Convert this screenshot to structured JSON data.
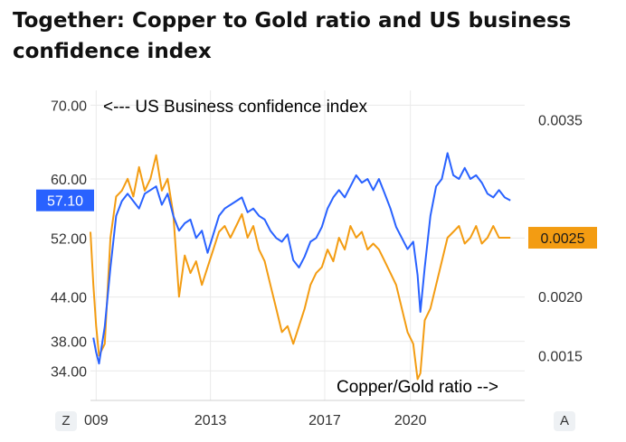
{
  "title": "Together: Copper to Gold ratio and US business confidence index",
  "buttons": {
    "left": "Z",
    "right": "A"
  },
  "colors": {
    "left_series": "#2962ff",
    "right_series": "#f39c12",
    "grid": "#eaeaea"
  },
  "chart_data": {
    "type": "line",
    "title": "Together: Copper to Gold ratio and US business confidence index",
    "x_ticks": [
      "009",
      "2013",
      "2017",
      "2020"
    ],
    "x_range": [
      2008.8,
      2024.0
    ],
    "left_axis": {
      "ticks": [
        "70.00",
        "60.00",
        "52.00",
        "44.00",
        "38.00",
        "34.00"
      ],
      "range": [
        30.0,
        72.0
      ]
    },
    "right_axis": {
      "ticks": [
        "0.0035",
        "0.0025",
        "0.0020",
        "0.0015"
      ],
      "range": [
        0.00112,
        0.00375
      ]
    },
    "series": [
      {
        "name": "US Business confidence index",
        "axis": "left",
        "annotation": "<--- US Business confidence index",
        "last_label": "57.10",
        "x": [
          2008.9,
          2009.0,
          2009.1,
          2009.3,
          2009.5,
          2009.7,
          2009.9,
          2010.1,
          2010.3,
          2010.5,
          2010.7,
          2010.9,
          2011.1,
          2011.3,
          2011.5,
          2011.7,
          2011.9,
          2012.1,
          2012.3,
          2012.5,
          2012.7,
          2012.9,
          2013.1,
          2013.3,
          2013.5,
          2013.7,
          2013.9,
          2014.1,
          2014.3,
          2014.5,
          2014.7,
          2014.9,
          2015.1,
          2015.3,
          2015.5,
          2015.7,
          2015.9,
          2016.1,
          2016.3,
          2016.5,
          2016.7,
          2016.9,
          2017.1,
          2017.3,
          2017.5,
          2017.7,
          2017.9,
          2018.1,
          2018.3,
          2018.5,
          2018.7,
          2018.9,
          2019.1,
          2019.3,
          2019.5,
          2019.7,
          2019.9,
          2020.1,
          2020.25,
          2020.35,
          2020.5,
          2020.7,
          2020.9,
          2021.1,
          2021.3,
          2021.5,
          2021.7,
          2021.9,
          2022.1,
          2022.3,
          2022.5,
          2022.7,
          2022.9,
          2023.1,
          2023.3,
          2023.5
        ],
        "values": [
          38.5,
          36.5,
          35.0,
          40.0,
          48.0,
          55.0,
          57.0,
          58.0,
          57.0,
          56.0,
          58.0,
          58.5,
          59.0,
          56.5,
          58.0,
          55.0,
          53.0,
          54.0,
          54.5,
          52.0,
          53.0,
          50.0,
          52.5,
          55.0,
          56.0,
          56.5,
          57.0,
          57.5,
          55.5,
          56.0,
          55.0,
          54.5,
          53.0,
          52.0,
          51.5,
          52.5,
          49.0,
          48.0,
          49.5,
          51.5,
          52.0,
          53.5,
          56.0,
          57.5,
          58.5,
          57.5,
          59.0,
          60.5,
          59.5,
          60.0,
          58.5,
          60.0,
          58.0,
          56.0,
          53.5,
          52.0,
          50.5,
          51.5,
          47.0,
          42.0,
          48.0,
          55.0,
          59.0,
          60.0,
          63.5,
          60.5,
          60.0,
          61.5,
          60.0,
          60.5,
          59.5,
          58.0,
          57.5,
          58.5,
          57.5,
          57.1
        ]
      },
      {
        "name": "Copper/Gold ratio",
        "axis": "right",
        "annotation": "Copper/Gold ratio -->",
        "last_label": "0.0025",
        "x": [
          2008.8,
          2008.9,
          2009.0,
          2009.1,
          2009.3,
          2009.5,
          2009.7,
          2009.9,
          2010.1,
          2010.3,
          2010.5,
          2010.7,
          2010.9,
          2011.1,
          2011.3,
          2011.5,
          2011.7,
          2011.9,
          2012.1,
          2012.3,
          2012.5,
          2012.7,
          2012.9,
          2013.1,
          2013.3,
          2013.5,
          2013.7,
          2013.9,
          2014.1,
          2014.3,
          2014.5,
          2014.7,
          2014.9,
          2015.1,
          2015.3,
          2015.5,
          2015.7,
          2015.9,
          2016.1,
          2016.3,
          2016.5,
          2016.7,
          2016.9,
          2017.1,
          2017.3,
          2017.5,
          2017.7,
          2017.9,
          2018.1,
          2018.3,
          2018.5,
          2018.7,
          2018.9,
          2019.1,
          2019.3,
          2019.5,
          2019.7,
          2019.9,
          2020.1,
          2020.25,
          2020.35,
          2020.5,
          2020.7,
          2020.9,
          2021.1,
          2021.3,
          2021.5,
          2021.7,
          2021.9,
          2022.1,
          2022.3,
          2022.5,
          2022.7,
          2022.9,
          2023.1,
          2023.3,
          2023.5
        ],
        "values": [
          0.00255,
          0.0021,
          0.00175,
          0.0015,
          0.0016,
          0.0025,
          0.00285,
          0.0029,
          0.003,
          0.00285,
          0.0031,
          0.0029,
          0.003,
          0.0032,
          0.0029,
          0.003,
          0.0027,
          0.002,
          0.00235,
          0.0022,
          0.0023,
          0.0021,
          0.00225,
          0.0024,
          0.00255,
          0.0026,
          0.0025,
          0.0026,
          0.0027,
          0.0025,
          0.0026,
          0.0024,
          0.0023,
          0.0021,
          0.0019,
          0.0017,
          0.00175,
          0.0016,
          0.00175,
          0.0019,
          0.0021,
          0.0022,
          0.00225,
          0.0024,
          0.0023,
          0.0025,
          0.0024,
          0.0026,
          0.0025,
          0.00255,
          0.0024,
          0.00245,
          0.0024,
          0.0023,
          0.0022,
          0.0021,
          0.0019,
          0.0017,
          0.0016,
          0.0013,
          0.00135,
          0.0018,
          0.0019,
          0.0021,
          0.0023,
          0.0025,
          0.00255,
          0.0026,
          0.00245,
          0.0025,
          0.0026,
          0.00245,
          0.0025,
          0.0026,
          0.0025,
          0.0025,
          0.0025
        ]
      }
    ]
  }
}
